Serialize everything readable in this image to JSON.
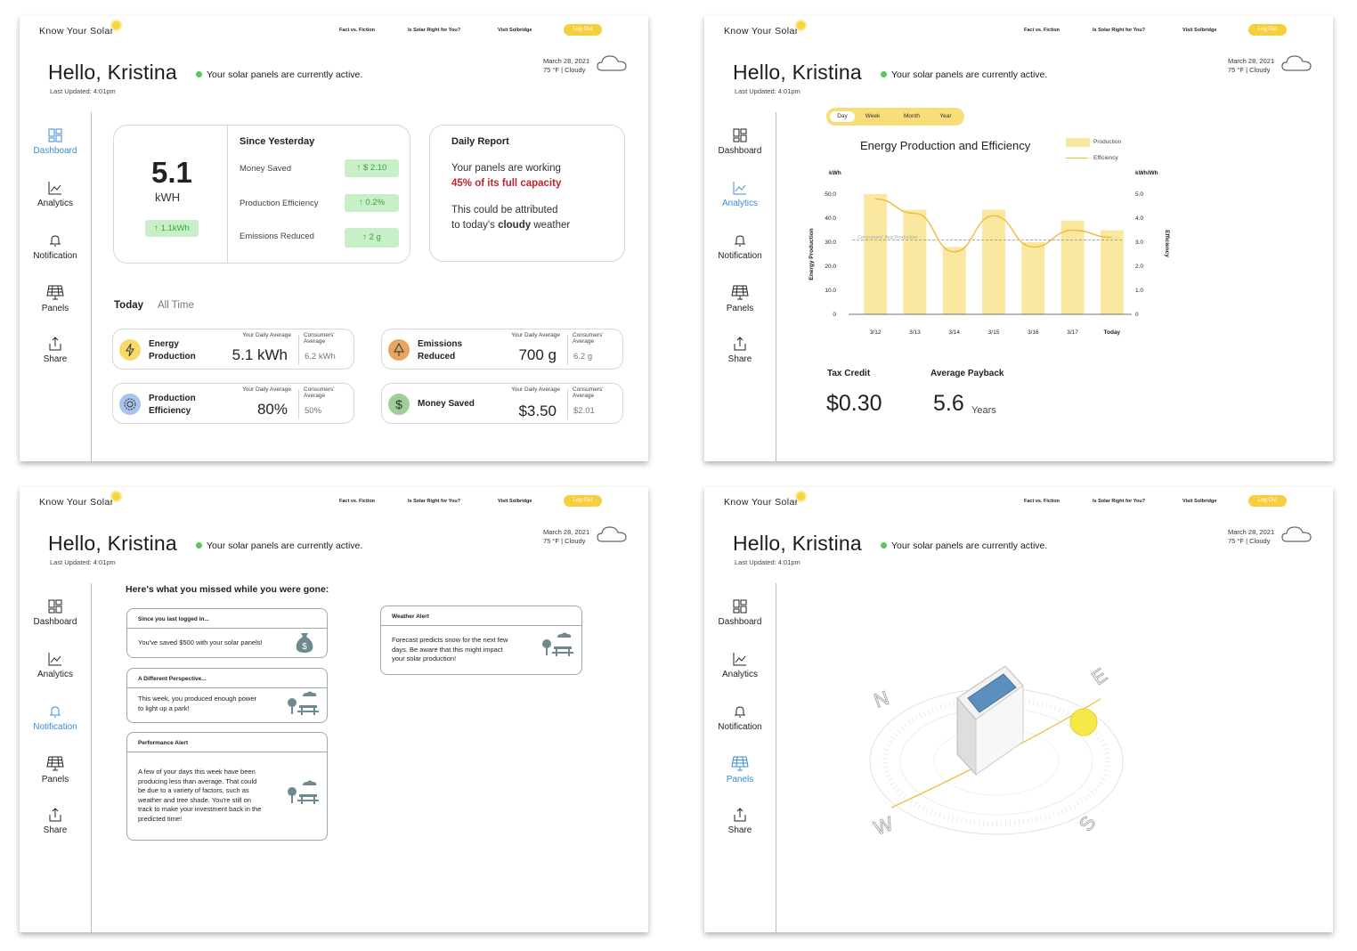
{
  "app": {
    "logo": "Know Your Solar",
    "nav": [
      "Fact vs. Fiction",
      "Is Solar Right for You?",
      "Visit Solbridge"
    ],
    "logout": "Log Out",
    "greeting": "Hello, Kristina",
    "status": "Your solar panels are currently active.",
    "last_updated": "Last Updated: 4:01pm",
    "date": "March 28, 2021",
    "weather": "75 °F | Cloudy"
  },
  "sidebar": [
    "Dashboard",
    "Analytics",
    "Notification",
    "Panels",
    "Share"
  ],
  "dashboard": {
    "big_value": "5.1",
    "big_unit": "kWH",
    "big_delta": "↑ 1.1kWh",
    "since_title": "Since Yesterday",
    "since": [
      {
        "label": "Money Saved",
        "delta": "↑  $ 2.10"
      },
      {
        "label": "Production Efficiency",
        "delta": "↑  0.2%"
      },
      {
        "label": "Emissions Reduced",
        "delta": "↑  2 g"
      }
    ],
    "report_title": "Daily Report",
    "report_line1": "Your panels are working",
    "report_highlight": "45% of its full capacity",
    "report_line2": "This could be attributed",
    "report_line3a": "to today's ",
    "report_line3b": "cloudy",
    "report_line3c": " weather",
    "tab_today": "Today",
    "tab_all": "All Time",
    "avg_label": "Your Daily Average",
    "cons_label": "Consumers' Average",
    "stats": [
      {
        "name1": "Energy",
        "name2": "Production",
        "avg": "5.1 kWh",
        "cons": "6.2 kWh",
        "color": "#f8d96a"
      },
      {
        "name1": "Emissions",
        "name2": "Reduced",
        "avg": "700 g",
        "cons": "6.2 g",
        "color": "#e8a560"
      },
      {
        "name1": "Production",
        "name2": "Efficiency",
        "avg": "80%",
        "cons": "50%",
        "color": "#a8c4ec"
      },
      {
        "name1": "Money Saved",
        "name2": "",
        "avg": "$3.50",
        "cons": "$2.01",
        "color": "#9fce97"
      }
    ]
  },
  "analytics": {
    "periods": [
      "Day",
      "Week",
      "Month",
      "Year"
    ],
    "selected_period": "Day",
    "tax_credit_label": "Tax Credit",
    "tax_credit": "$0.30",
    "payback_label": "Average Payback",
    "payback": "5.6",
    "payback_unit": "Years"
  },
  "chart_data": {
    "type": "bar",
    "title": "Energy Production and Efficiency",
    "categories": [
      "3/12",
      "3/13",
      "3/14",
      "3/15",
      "3/16",
      "3/17",
      "Today"
    ],
    "series": [
      {
        "name": "Production",
        "values": [
          50.0,
          43.5,
          28.0,
          43.5,
          30.0,
          39.0,
          35.0
        ]
      },
      {
        "name": "Efficiency",
        "values": [
          4.8,
          4.2,
          2.6,
          4.1,
          2.8,
          3.5,
          3.2
        ]
      }
    ],
    "ylabel": "Energy Production",
    "y_unit": "kWh",
    "y2label": "Efficiency",
    "y2_unit": "kWh/Wh",
    "ylim": [
      0,
      50
    ],
    "y2lim": [
      0,
      5
    ],
    "yticks": [
      "0",
      "10.0",
      "20.0",
      "30.0",
      "40.0",
      "50.0"
    ],
    "y2ticks": [
      "0",
      "1.0",
      "2.0",
      "3.0",
      "4.0",
      "5.0"
    ],
    "reference_line": {
      "label": "Consumers' Avg Production",
      "value": 31
    },
    "legend": "top-right",
    "colors": {
      "bar": "#fae8a0",
      "line": "#f2b93a"
    }
  },
  "notifications": {
    "heading": "Here's what you missed while you were gone:",
    "cards": [
      {
        "title": "Since you last logged in...",
        "body": [
          "You've saved $500 with your solar panels!"
        ]
      },
      {
        "title": "A Different Perspective...",
        "body": [
          "This week, you produced enough power",
          "to light up a park!"
        ]
      },
      {
        "title": "Performance Alert",
        "body": [
          "A few of your days this week have been",
          "producing less than average. That could",
          "be due to a variety of factors, such as",
          "weather and tree shade. You're still on",
          "track to make your investment back in the",
          "predicted time!"
        ]
      },
      {
        "title": "Weather Alert",
        "body": [
          "Forecast predicts snow for the next few",
          "days. Be aware that this might impact",
          "your solar production!"
        ]
      }
    ]
  },
  "panels": {
    "compass": [
      "N",
      "E",
      "S",
      "W"
    ]
  }
}
